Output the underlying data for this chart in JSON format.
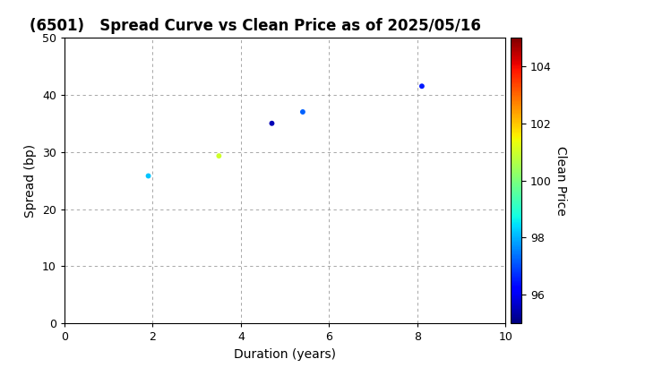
{
  "title": "(6501)   Spread Curve vs Clean Price as of 2025/05/16",
  "xlabel": "Duration (years)",
  "ylabel": "Spread (bp)",
  "colorbar_label": "Clean Price",
  "xlim": [
    0,
    10
  ],
  "ylim": [
    0,
    50
  ],
  "xticks": [
    0,
    2,
    4,
    6,
    8,
    10
  ],
  "yticks": [
    0,
    10,
    20,
    30,
    40,
    50
  ],
  "colorbar_min": 95,
  "colorbar_max": 105,
  "colorbar_ticks": [
    96,
    98,
    100,
    102,
    104
  ],
  "points": [
    {
      "duration": 1.9,
      "spread": 25.8,
      "clean_price": 98.2
    },
    {
      "duration": 3.5,
      "spread": 29.3,
      "clean_price": 101.0
    },
    {
      "duration": 4.7,
      "spread": 35.0,
      "clean_price": 95.5
    },
    {
      "duration": 5.4,
      "spread": 37.0,
      "clean_price": 97.2
    },
    {
      "duration": 8.1,
      "spread": 41.5,
      "clean_price": 96.5
    }
  ],
  "marker_size": 18,
  "background_color": "#ffffff",
  "grid_color": "#999999",
  "title_fontsize": 12,
  "axis_fontsize": 10,
  "tick_fontsize": 9,
  "cbar_fontsize": 9
}
